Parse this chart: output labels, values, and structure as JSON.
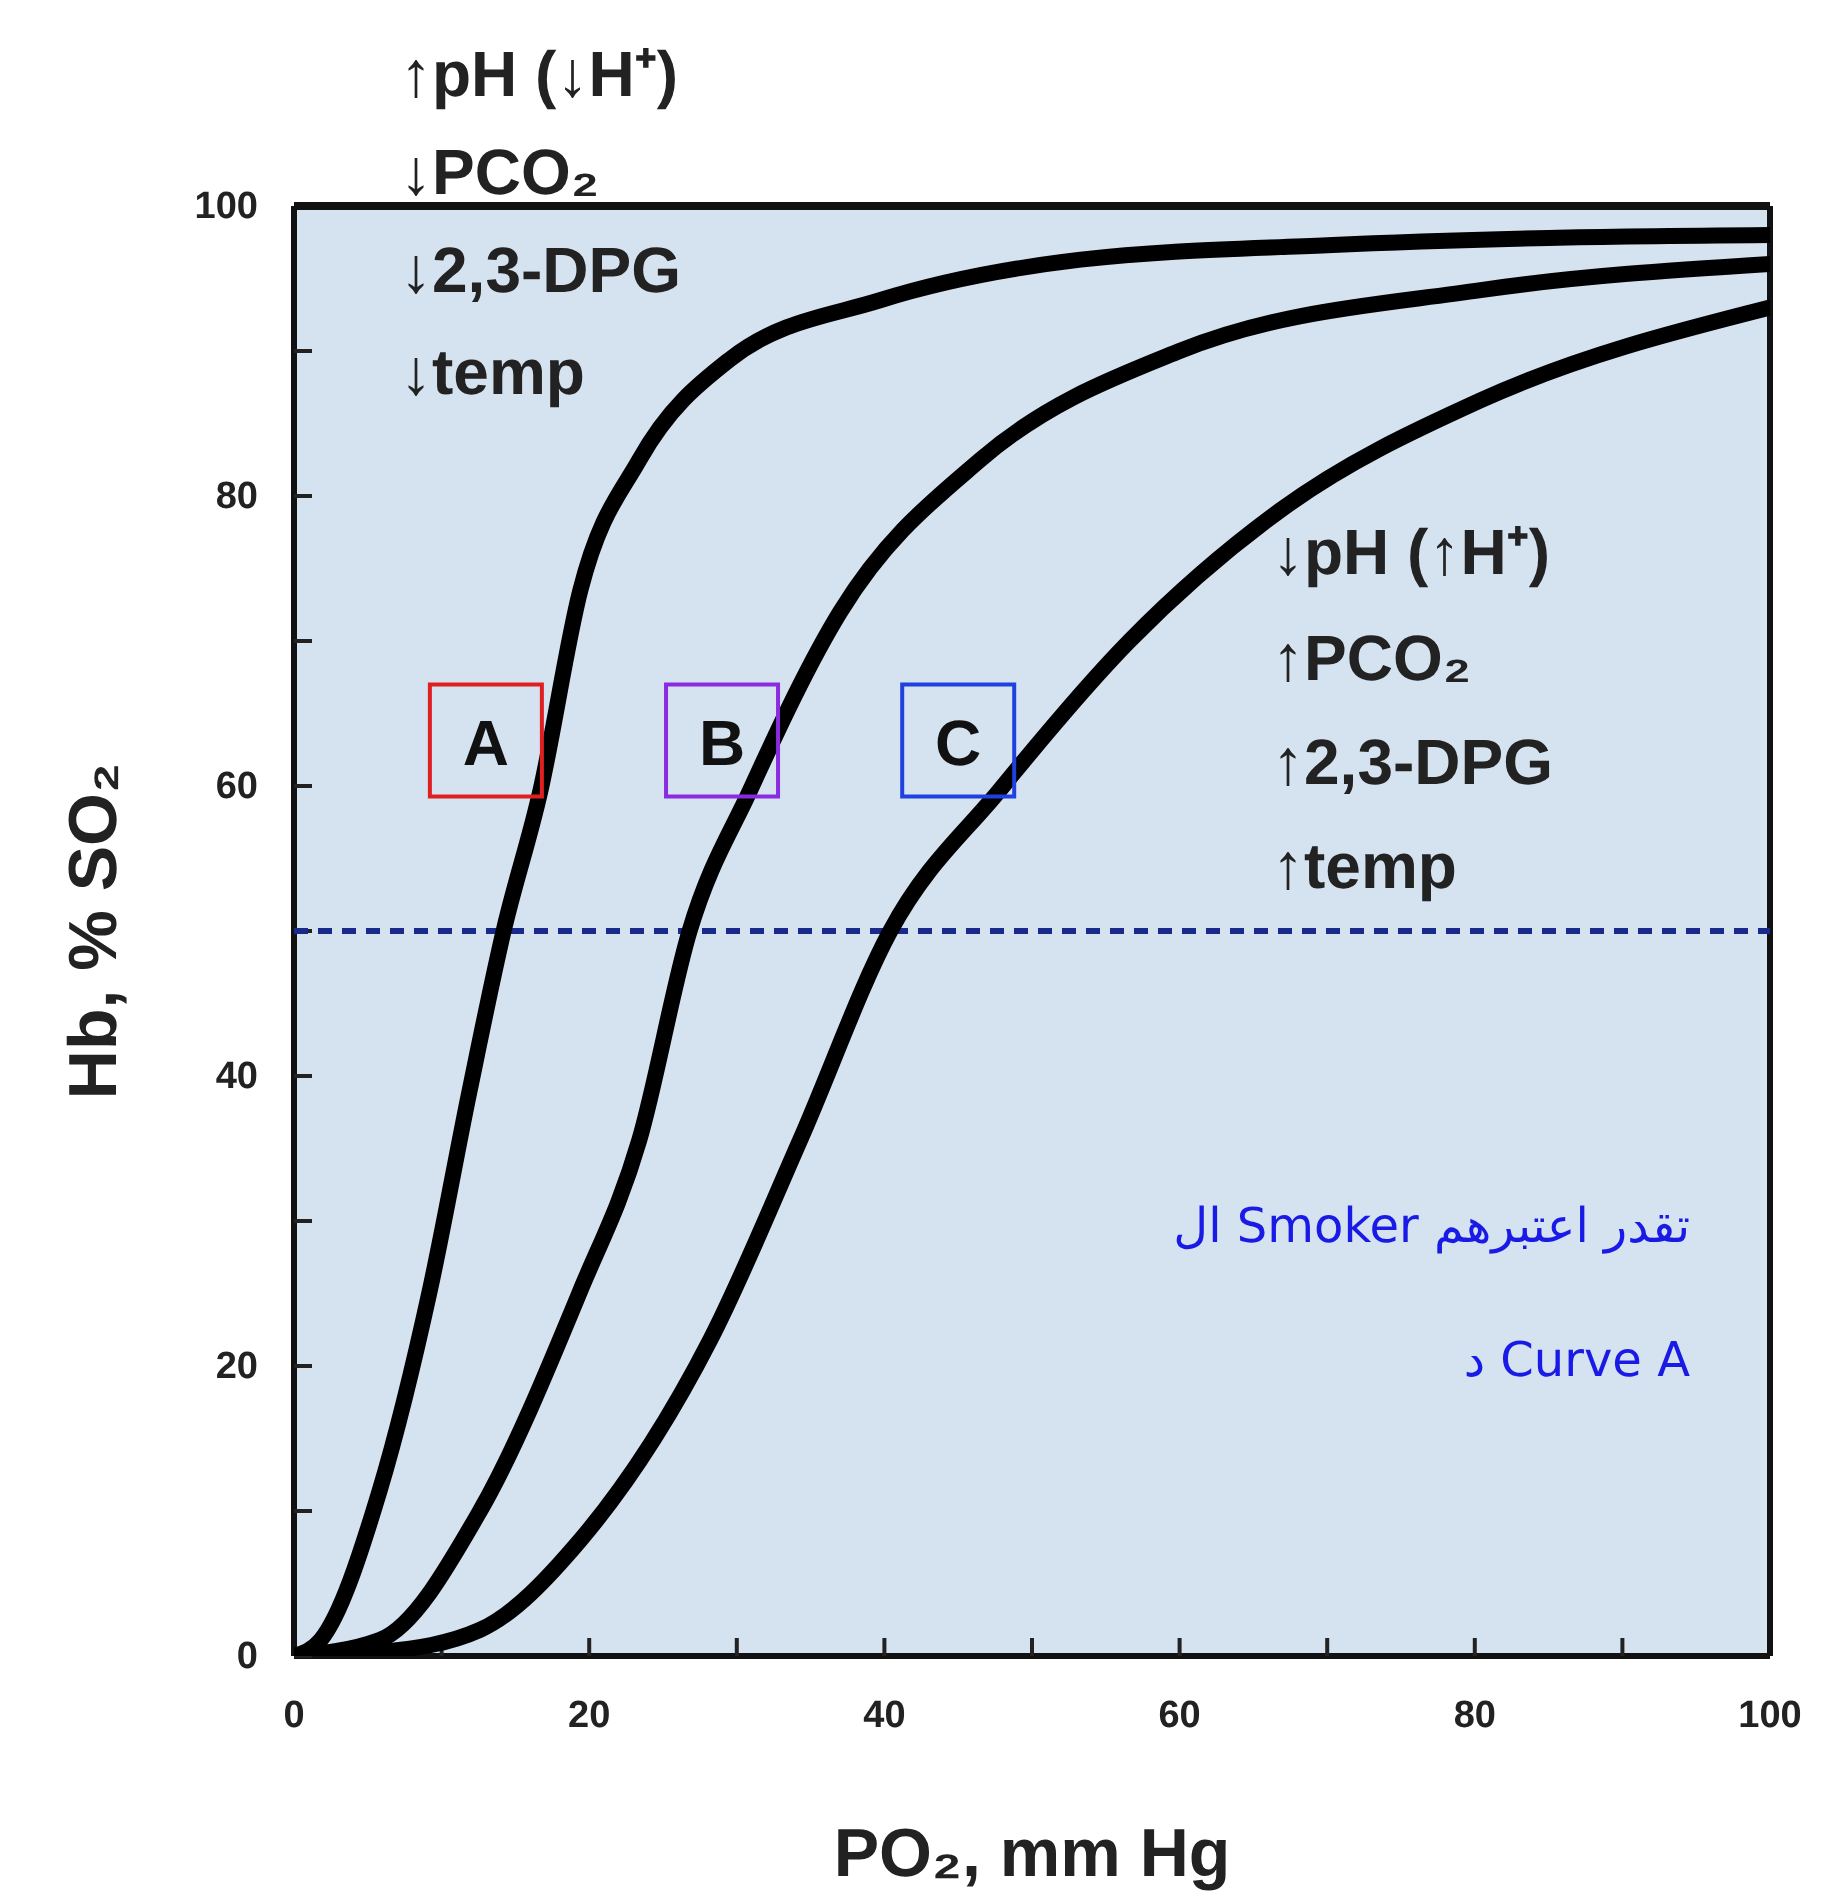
{
  "chart_data": {
    "type": "line",
    "xlabel": "PO₂, mm Hg",
    "ylabel": "Hb, % SO₂",
    "xlim": [
      0,
      100
    ],
    "ylim": [
      0,
      100
    ],
    "xticks": [
      0,
      {
        "value": 10,
        "label": null
      },
      20,
      {
        "value": 30,
        "label": null
      },
      40,
      {
        "value": 50,
        "label": null
      },
      60,
      {
        "value": 70,
        "label": null
      },
      80,
      {
        "value": 90,
        "label": null
      },
      100
    ],
    "yticks": [
      0,
      {
        "value": 10,
        "label": null
      },
      20,
      {
        "value": 30,
        "label": null
      },
      40,
      {
        "value": 50,
        "label": null
      },
      60,
      {
        "value": 70,
        "label": null
      },
      80,
      {
        "value": 90,
        "label": null
      },
      100
    ],
    "grid": false,
    "legend": false,
    "marker": "none",
    "line_style": "solid",
    "series": [
      {
        "name": "A",
        "color": "#000000",
        "x": [
          0,
          1.8,
          5.8,
          9.2,
          11.9,
          14.2,
          16.7,
          19.4,
          23.4,
          29.5,
          39.7,
          53.3,
          70,
          85,
          100
        ],
        "values": [
          0,
          1.1,
          11.4,
          25.2,
          39,
          50,
          59.7,
          73.5,
          82.5,
          89.4,
          93.5,
          96.3,
          97.3,
          97.8,
          98
        ]
      },
      {
        "name": "B",
        "color": "#000000",
        "x": [
          0,
          5.8,
          12.6,
          19.4,
          23.4,
          26.8,
          30.9,
          37,
          46.5,
          60,
          80.4,
          100
        ],
        "values": [
          0,
          1.1,
          10,
          25.2,
          35.6,
          50,
          59.7,
          72,
          82.5,
          90,
          94.2,
          96
        ]
      },
      {
        "name": "C",
        "color": "#000000",
        "x": [
          0,
          6,
          12.6,
          19.4,
          28.2,
          34.3,
          40.4,
          47.8,
          56.6,
          66.8,
          80.4,
          100
        ],
        "values": [
          0,
          0.3,
          1.8,
          8,
          21.8,
          35.6,
          50,
          59.7,
          70,
          79,
          86.6,
          93
        ]
      }
    ],
    "ref_lines": [
      {
        "axis": "y",
        "value": 50,
        "color": "#1a2a8a",
        "line_style": "dashed"
      }
    ],
    "annotations": [
      "↑pH (↓H⁺)",
      "↓PCO₂",
      "↓2,3-DPG",
      "↓temp",
      "↓pH (↑H⁺)",
      "↑PCO₂",
      "↑2,3-DPG",
      "↑temp",
      "ال Smoker تقدر اعتبرهم",
      "د Curve A"
    ]
  }
}
